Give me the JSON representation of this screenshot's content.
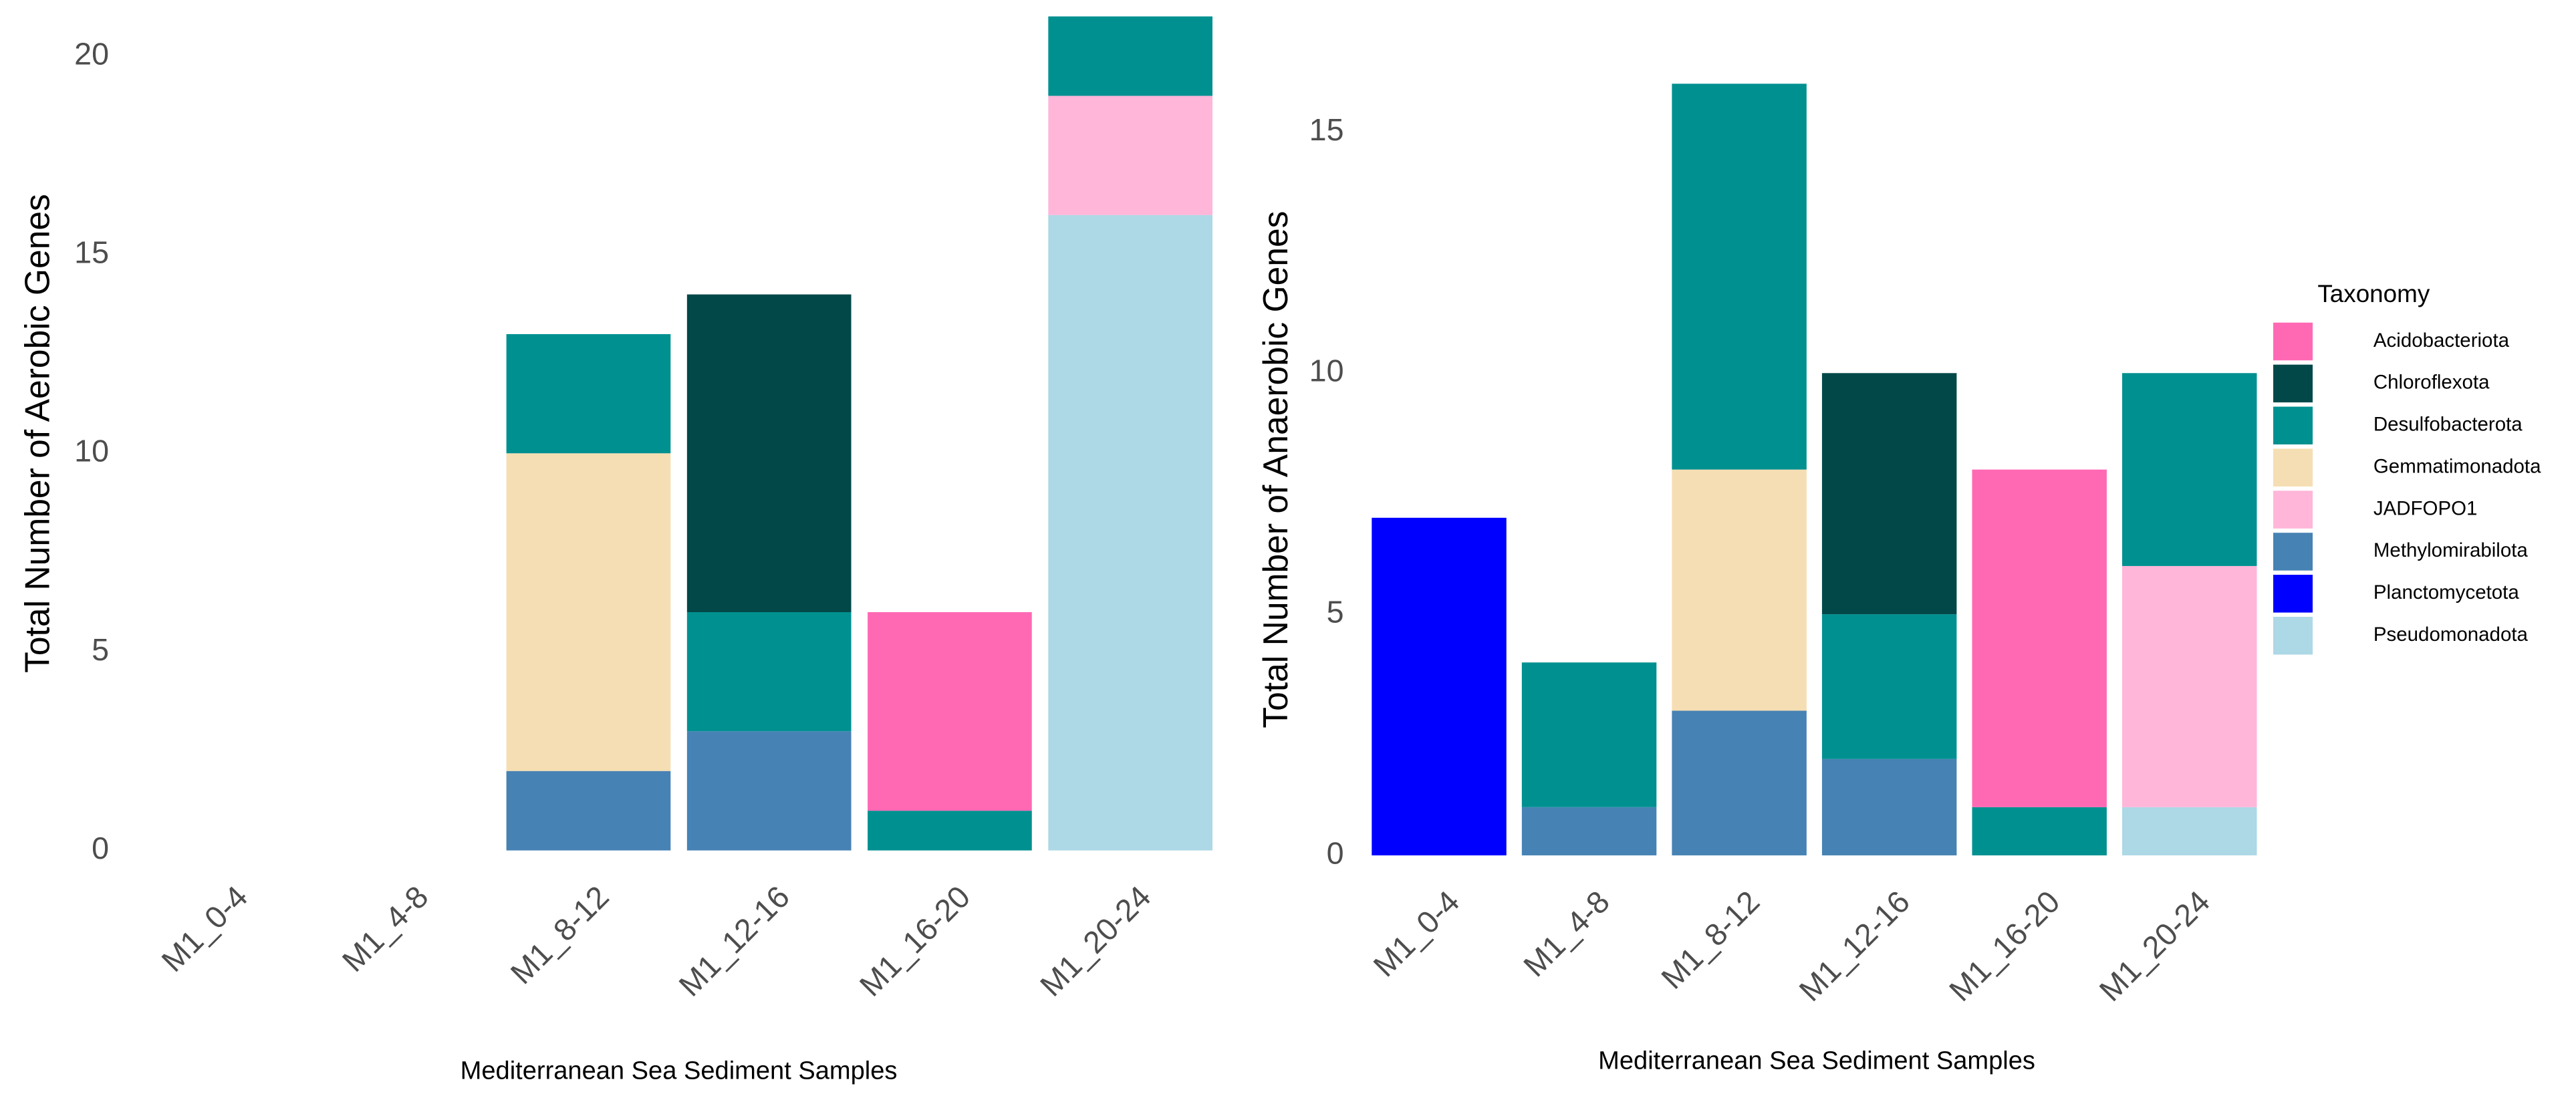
{
  "legend": {
    "title": "Taxonomy",
    "items": [
      {
        "name": "Acidobacteriota",
        "color": "#ff69b4"
      },
      {
        "name": "Chloroflexota",
        "color": "#034848"
      },
      {
        "name": "Desulfobacterota",
        "color": "#009090"
      },
      {
        "name": "Gemmatimonadota",
        "color": "#f5deb3"
      },
      {
        "name": "JADFOPO1",
        "color": "#ffb6d9"
      },
      {
        "name": "Methylomirabilota",
        "color": "#4682b4"
      },
      {
        "name": "Planctomycetota",
        "color": "#0000ff"
      },
      {
        "name": "Pseudomonadota",
        "color": "#add8e6"
      }
    ]
  },
  "chart_data": [
    {
      "type": "stacked_bar",
      "ylabel": "Total Number of Aerobic Genes",
      "xlabel": "Mediterranean Sea Sediment Samples",
      "categories": [
        "M1_0-4",
        "M1_4-8",
        "M1_8-12",
        "M1_12-16",
        "M1_16-20",
        "M1_20-24"
      ],
      "ylim": [
        0,
        21
      ],
      "yticks": [
        0,
        5,
        10,
        15,
        20
      ],
      "series": [
        {
          "values": [
            null,
            null,
            null,
            null,
            5,
            null
          ]
        },
        {
          "values": [
            null,
            null,
            null,
            8,
            null,
            null
          ]
        },
        {
          "values": [
            null,
            null,
            3,
            3,
            1,
            2
          ]
        },
        {
          "values": [
            null,
            null,
            8,
            null,
            null,
            null
          ]
        },
        {
          "values": [
            null,
            null,
            null,
            null,
            null,
            3
          ]
        },
        {
          "values": [
            null,
            null,
            2,
            3,
            null,
            null
          ]
        },
        {
          "values": [
            null,
            null,
            null,
            null,
            null,
            null
          ]
        },
        {
          "values": [
            null,
            null,
            null,
            null,
            null,
            16
          ]
        }
      ]
    },
    {
      "type": "stacked_bar",
      "ylabel": "Total Number of Anaerobic Genes",
      "xlabel": "Mediterranean Sea Sediment Samples",
      "categories": [
        "M1_0-4",
        "M1_4-8",
        "M1_8-12",
        "M1_12-16",
        "M1_16-20",
        "M1_20-24"
      ],
      "ylim": [
        0,
        16
      ],
      "yticks": [
        0,
        5,
        10,
        15
      ],
      "series": [
        {
          "values": [
            null,
            null,
            null,
            null,
            7,
            null
          ]
        },
        {
          "values": [
            null,
            null,
            null,
            5,
            null,
            null
          ]
        },
        {
          "values": [
            null,
            3,
            8,
            3,
            1,
            4
          ]
        },
        {
          "values": [
            null,
            null,
            5,
            null,
            null,
            null
          ]
        },
        {
          "values": [
            null,
            null,
            null,
            null,
            null,
            5
          ]
        },
        {
          "values": [
            null,
            1,
            3,
            2,
            null,
            null
          ]
        },
        {
          "values": [
            7,
            null,
            null,
            null,
            null,
            null
          ]
        },
        {
          "values": [
            null,
            null,
            null,
            null,
            null,
            1
          ]
        }
      ]
    }
  ]
}
